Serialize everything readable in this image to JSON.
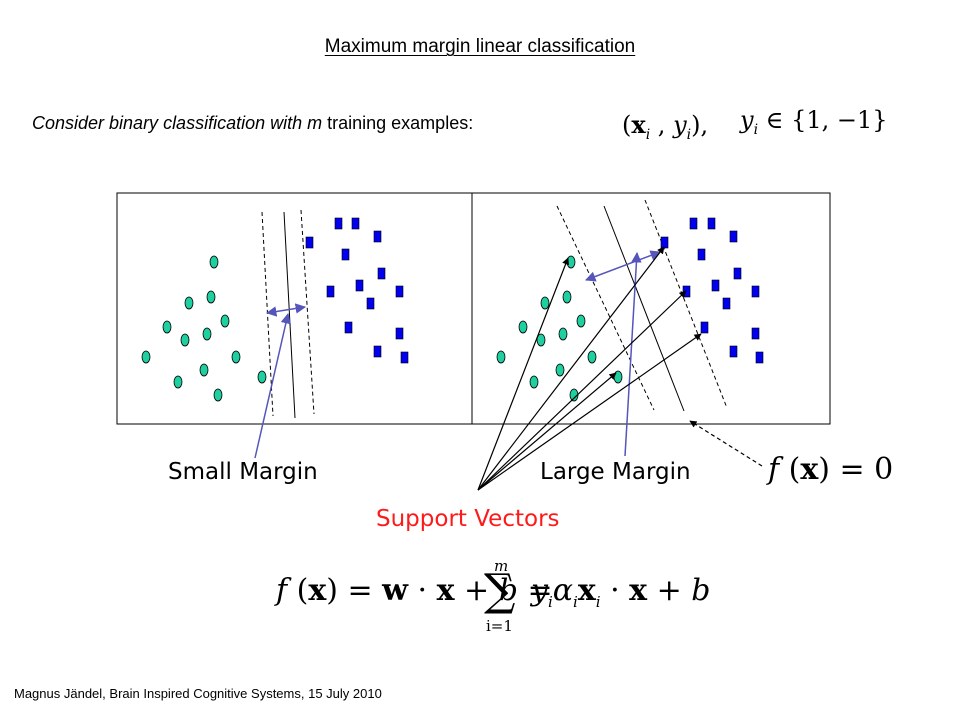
{
  "slide": {
    "title": "Maximum margin linear classification",
    "intro": {
      "prefix": "Consider binary classification with ",
      "m": "m",
      "suffix": " training examples:"
    },
    "pair_math": {
      "open": "(",
      "x": "x",
      "i1": "i",
      "comma": " , ",
      "y": "y",
      "i2": "i",
      "close": "),"
    },
    "label_math": {
      "y": "y",
      "i": "i",
      "set": " ∈ {1, −1}"
    },
    "labels": {
      "small_margin": "Small Margin",
      "large_margin": "Large Margin",
      "support_vectors": "Support Vectors"
    },
    "decision_eq": {
      "f": "f",
      "open": " (",
      "x": "x",
      "rest": ") = 0"
    },
    "formula": {
      "f": "f",
      "open": " (",
      "x": "x",
      "eq1": ") = ",
      "w": "w",
      "dot1": " · ",
      "x2": "x",
      "plus1": " + ",
      "b": "b",
      "eq2": " = ",
      "sum": "∑",
      "upper": "m",
      "lower": "i=1",
      "y": "y",
      "i1": "i",
      "alpha": "α",
      "i2": "i",
      "x3": "x",
      "i3": "i",
      "dot2": " · ",
      "x4": "x",
      "plus2": " + ",
      "b2": "b"
    },
    "footer": "Magnus Jändel, Brain Inspired Cognitive Systems, 15 July 2010"
  },
  "colors": {
    "circle_fill": "#1fcf9f",
    "square_fill": "#0000ee",
    "arrow": "#5555bb",
    "support_vectors_label": "#ff1a1a"
  },
  "icons": {
    "positive_class": "teal-ellipse",
    "negative_class": "blue-square"
  }
}
